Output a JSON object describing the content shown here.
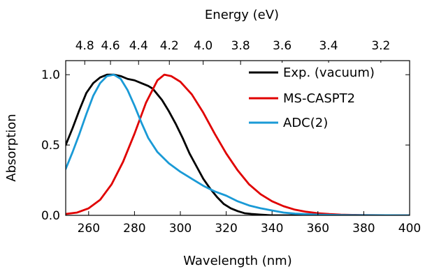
{
  "chart_data": {
    "type": "line",
    "xlabel": "Wavelength (nm)",
    "ylabel": "Absorption",
    "top_axis_label": "Energy (eV)",
    "xlim": [
      250,
      400
    ],
    "ylim": [
      0,
      1.1
    ],
    "x_ticks": [
      260,
      280,
      300,
      320,
      340,
      360,
      380,
      400
    ],
    "y_ticks": [
      0.0,
      0.5,
      1.0
    ],
    "x_tick_labels": [
      "260",
      "280",
      "300",
      "320",
      "340",
      "360",
      "380",
      "400"
    ],
    "y_tick_labels": [
      "0.0",
      "0.5",
      "1.0"
    ],
    "top_ticks_ev": [
      4.8,
      4.6,
      4.4,
      4.2,
      4.0,
      3.8,
      3.6,
      3.4,
      3.2
    ],
    "top_tick_labels": [
      "4.8",
      "4.6",
      "4.4",
      "4.2",
      "4.0",
      "3.8",
      "3.6",
      "3.4",
      "3.2"
    ],
    "legend_position": "top-right",
    "grid": false,
    "series": [
      {
        "name": "Exp. (vacuum)",
        "color": "#000000",
        "x": [
          250,
          253,
          256,
          259,
          262,
          265,
          268,
          271,
          274,
          277,
          280,
          283,
          286,
          288,
          290,
          292,
          295,
          298,
          301,
          304,
          307,
          310,
          313,
          316,
          319,
          322,
          325,
          328,
          331,
          335,
          340,
          350,
          360,
          380,
          400
        ],
        "y": [
          0.5,
          0.62,
          0.75,
          0.87,
          0.94,
          0.98,
          1.0,
          1.0,
          0.99,
          0.97,
          0.96,
          0.94,
          0.92,
          0.9,
          0.86,
          0.82,
          0.74,
          0.65,
          0.55,
          0.44,
          0.35,
          0.26,
          0.19,
          0.13,
          0.08,
          0.05,
          0.03,
          0.015,
          0.01,
          0.005,
          0.0,
          0.0,
          0.0,
          0.0,
          0.0
        ]
      },
      {
        "name": "MS-CASPT2",
        "color": "#e00000",
        "x": [
          250,
          255,
          260,
          265,
          270,
          275,
          280,
          285,
          290,
          293,
          296,
          300,
          305,
          310,
          315,
          320,
          325,
          330,
          335,
          340,
          345,
          350,
          355,
          360,
          365,
          370,
          375,
          380,
          390,
          400
        ],
        "y": [
          0.01,
          0.02,
          0.05,
          0.11,
          0.22,
          0.38,
          0.58,
          0.8,
          0.96,
          1.0,
          0.99,
          0.95,
          0.86,
          0.73,
          0.58,
          0.44,
          0.32,
          0.22,
          0.15,
          0.1,
          0.065,
          0.04,
          0.025,
          0.015,
          0.009,
          0.005,
          0.003,
          0.002,
          0.0005,
          0.0
        ]
      },
      {
        "name": "ADC(2)",
        "color": "#1a9ad6",
        "x": [
          250,
          253,
          256,
          259,
          262,
          265,
          268,
          271,
          274,
          277,
          280,
          283,
          286,
          290,
          295,
          300,
          305,
          310,
          315,
          320,
          325,
          330,
          335,
          340,
          345,
          350,
          360,
          370,
          380,
          400
        ],
        "y": [
          0.33,
          0.45,
          0.58,
          0.72,
          0.85,
          0.94,
          0.99,
          1.0,
          0.97,
          0.89,
          0.78,
          0.66,
          0.55,
          0.45,
          0.37,
          0.31,
          0.26,
          0.21,
          0.17,
          0.14,
          0.1,
          0.07,
          0.05,
          0.035,
          0.02,
          0.012,
          0.005,
          0.002,
          0.001,
          0.0
        ]
      }
    ]
  }
}
